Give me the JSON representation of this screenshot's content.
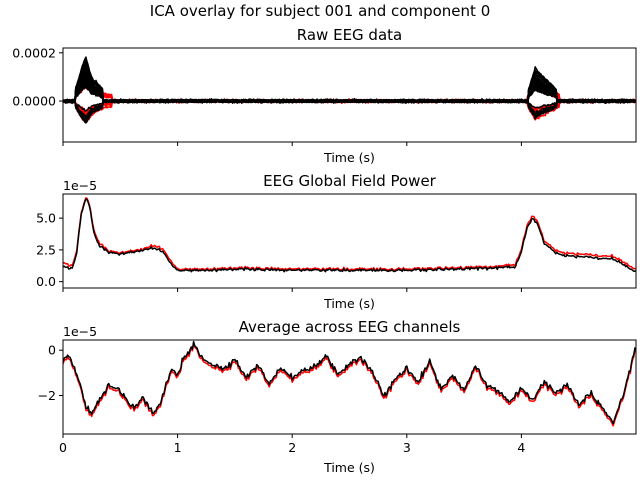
{
  "figure": {
    "suptitle": "ICA overlay for subject 001 and component 0"
  },
  "chart_data": [
    {
      "type": "line",
      "title": "Raw EEG data",
      "xlabel": "Time (s)",
      "ylabel": "",
      "offset_text": "",
      "xlim": [
        0,
        5
      ],
      "ylim": [
        -0.00017,
        0.00022
      ],
      "xticks": [
        0,
        1,
        2,
        3,
        4
      ],
      "xtick_labels_visible": false,
      "yticks": [
        0,
        0.0002
      ],
      "ytick_labels": [
        "0.0000",
        "0.0002"
      ],
      "overlay_channels": 40,
      "x": [
        0,
        0.1,
        0.17,
        0.2,
        0.25,
        0.35,
        0.5,
        0.8,
        1.2,
        2.0,
        3.0,
        3.9,
        4.05,
        4.12,
        4.2,
        4.35,
        4.6,
        5.0
      ],
      "series": [
        {
          "name": "",
          "color": "#ff0000",
          "envelope_max": [
            1e-05,
            4e-05,
            0.00016,
            0.00019,
            0.00012,
            6e-05,
            4e-05,
            2e-05,
            1.5e-05,
            1e-05,
            1e-05,
            1e-05,
            4e-05,
            0.00016,
            0.00012,
            4e-05,
            2e-05,
            1e-05
          ]
        },
        {
          "name": "",
          "color": "#000000",
          "envelope_max": [
            1e-05,
            4e-05,
            0.00015,
            0.00019,
            0.0001,
            5e-05,
            3e-05,
            2e-05,
            1e-05,
            1e-05,
            1e-05,
            1e-05,
            3e-05,
            0.00014,
            0.0001,
            3e-05,
            2e-05,
            1e-05
          ]
        }
      ]
    },
    {
      "type": "line",
      "title": "EEG Global Field Power",
      "xlabel": "Time (s)",
      "ylabel": "",
      "offset_text": "1e−5",
      "xlim": [
        0,
        5
      ],
      "ylim": [
        -0.5,
        6.9
      ],
      "xticks": [
        0,
        1,
        2,
        3,
        4
      ],
      "xtick_labels_visible": false,
      "yticks": [
        0,
        2.5,
        5.0
      ],
      "ytick_labels": [
        "0.0",
        "2.5",
        "5.0"
      ],
      "x": [
        0,
        0.08,
        0.12,
        0.16,
        0.2,
        0.23,
        0.27,
        0.32,
        0.4,
        0.5,
        0.6,
        0.7,
        0.8,
        0.88,
        0.95,
        1.0,
        1.2,
        1.5,
        2.0,
        2.5,
        3.0,
        3.5,
        3.8,
        3.95,
        4.0,
        4.05,
        4.1,
        4.15,
        4.2,
        4.3,
        4.4,
        4.6,
        4.8,
        4.9,
        4.99
      ],
      "series": [
        {
          "name": "",
          "color": "#ff0000",
          "values": [
            1.5,
            1.2,
            2.5,
            5.5,
            6.6,
            6.1,
            4.0,
            3.0,
            2.4,
            2.3,
            2.4,
            2.6,
            2.9,
            2.5,
            1.5,
            1.0,
            1.0,
            1.1,
            1.0,
            1.0,
            1.0,
            1.1,
            1.2,
            1.4,
            2.5,
            4.5,
            5.2,
            4.6,
            3.2,
            2.4,
            2.2,
            2.1,
            2.0,
            1.5,
            1.0
          ]
        },
        {
          "name": "",
          "color": "#000000",
          "values": [
            1.2,
            1.0,
            2.3,
            5.4,
            6.5,
            6.0,
            3.8,
            2.8,
            2.3,
            2.2,
            2.3,
            2.5,
            2.7,
            2.3,
            1.3,
            0.9,
            0.9,
            1.0,
            0.9,
            0.9,
            0.9,
            1.0,
            1.1,
            1.2,
            2.3,
            4.3,
            5.0,
            4.4,
            3.0,
            2.2,
            2.0,
            1.9,
            1.8,
            1.3,
            0.8
          ]
        }
      ]
    },
    {
      "type": "line",
      "title": "Average across EEG channels",
      "xlabel": "Time (s)",
      "ylabel": "",
      "offset_text": "1e−5",
      "xlim": [
        0,
        5
      ],
      "ylim": [
        -3.7,
        0.45
      ],
      "xticks": [
        0,
        1,
        2,
        3,
        4
      ],
      "xtick_labels": [
        "0",
        "1",
        "2",
        "3",
        "4"
      ],
      "xtick_labels_visible": true,
      "yticks": [
        -2,
        0
      ],
      "ytick_labels": [
        "−2",
        "0"
      ],
      "x": [
        0,
        0.05,
        0.1,
        0.15,
        0.2,
        0.25,
        0.3,
        0.35,
        0.4,
        0.5,
        0.6,
        0.7,
        0.78,
        0.85,
        0.9,
        0.95,
        1.0,
        1.05,
        1.1,
        1.15,
        1.2,
        1.3,
        1.4,
        1.5,
        1.6,
        1.7,
        1.8,
        1.9,
        2.0,
        2.1,
        2.2,
        2.3,
        2.4,
        2.5,
        2.6,
        2.7,
        2.8,
        2.9,
        3.0,
        3.1,
        3.2,
        3.3,
        3.4,
        3.5,
        3.6,
        3.7,
        3.8,
        3.9,
        4.0,
        4.1,
        4.2,
        4.3,
        4.4,
        4.5,
        4.6,
        4.7,
        4.8,
        4.9,
        4.99
      ],
      "series": [
        {
          "name": "",
          "color": "#ff0000",
          "values": [
            -0.6,
            -0.3,
            -0.9,
            -1.6,
            -2.6,
            -2.9,
            -2.4,
            -2.1,
            -1.6,
            -1.9,
            -2.6,
            -2.2,
            -2.9,
            -2.5,
            -1.6,
            -1.0,
            -1.2,
            -0.4,
            -0.2,
            0.25,
            -0.4,
            -0.7,
            -1.0,
            -0.5,
            -1.3,
            -0.8,
            -1.6,
            -0.9,
            -1.3,
            -1.0,
            -0.8,
            -0.4,
            -1.2,
            -0.7,
            -0.4,
            -1.1,
            -2.1,
            -1.4,
            -0.9,
            -1.5,
            -0.6,
            -1.8,
            -1.2,
            -1.9,
            -0.8,
            -1.7,
            -1.9,
            -2.4,
            -1.8,
            -2.3,
            -1.5,
            -2.0,
            -1.6,
            -2.5,
            -2.0,
            -2.6,
            -3.3,
            -1.9,
            -0.1
          ]
        },
        {
          "name": "",
          "color": "#000000",
          "values": [
            -0.5,
            -0.2,
            -0.8,
            -1.5,
            -2.5,
            -2.8,
            -2.3,
            -2.0,
            -1.5,
            -1.8,
            -2.5,
            -2.1,
            -2.8,
            -2.4,
            -1.5,
            -0.9,
            -1.1,
            -0.3,
            -0.1,
            0.3,
            -0.3,
            -0.6,
            -0.9,
            -0.4,
            -1.2,
            -0.7,
            -1.5,
            -0.8,
            -1.2,
            -0.9,
            -0.7,
            -0.3,
            -1.1,
            -0.6,
            -0.3,
            -1.0,
            -2.0,
            -1.3,
            -0.8,
            -1.4,
            -0.5,
            -1.7,
            -1.1,
            -1.8,
            -0.7,
            -1.6,
            -1.8,
            -2.3,
            -1.7,
            -2.2,
            -1.4,
            -1.9,
            -1.5,
            -2.4,
            -1.9,
            -2.5,
            -3.2,
            -1.8,
            0.0
          ]
        }
      ]
    }
  ]
}
